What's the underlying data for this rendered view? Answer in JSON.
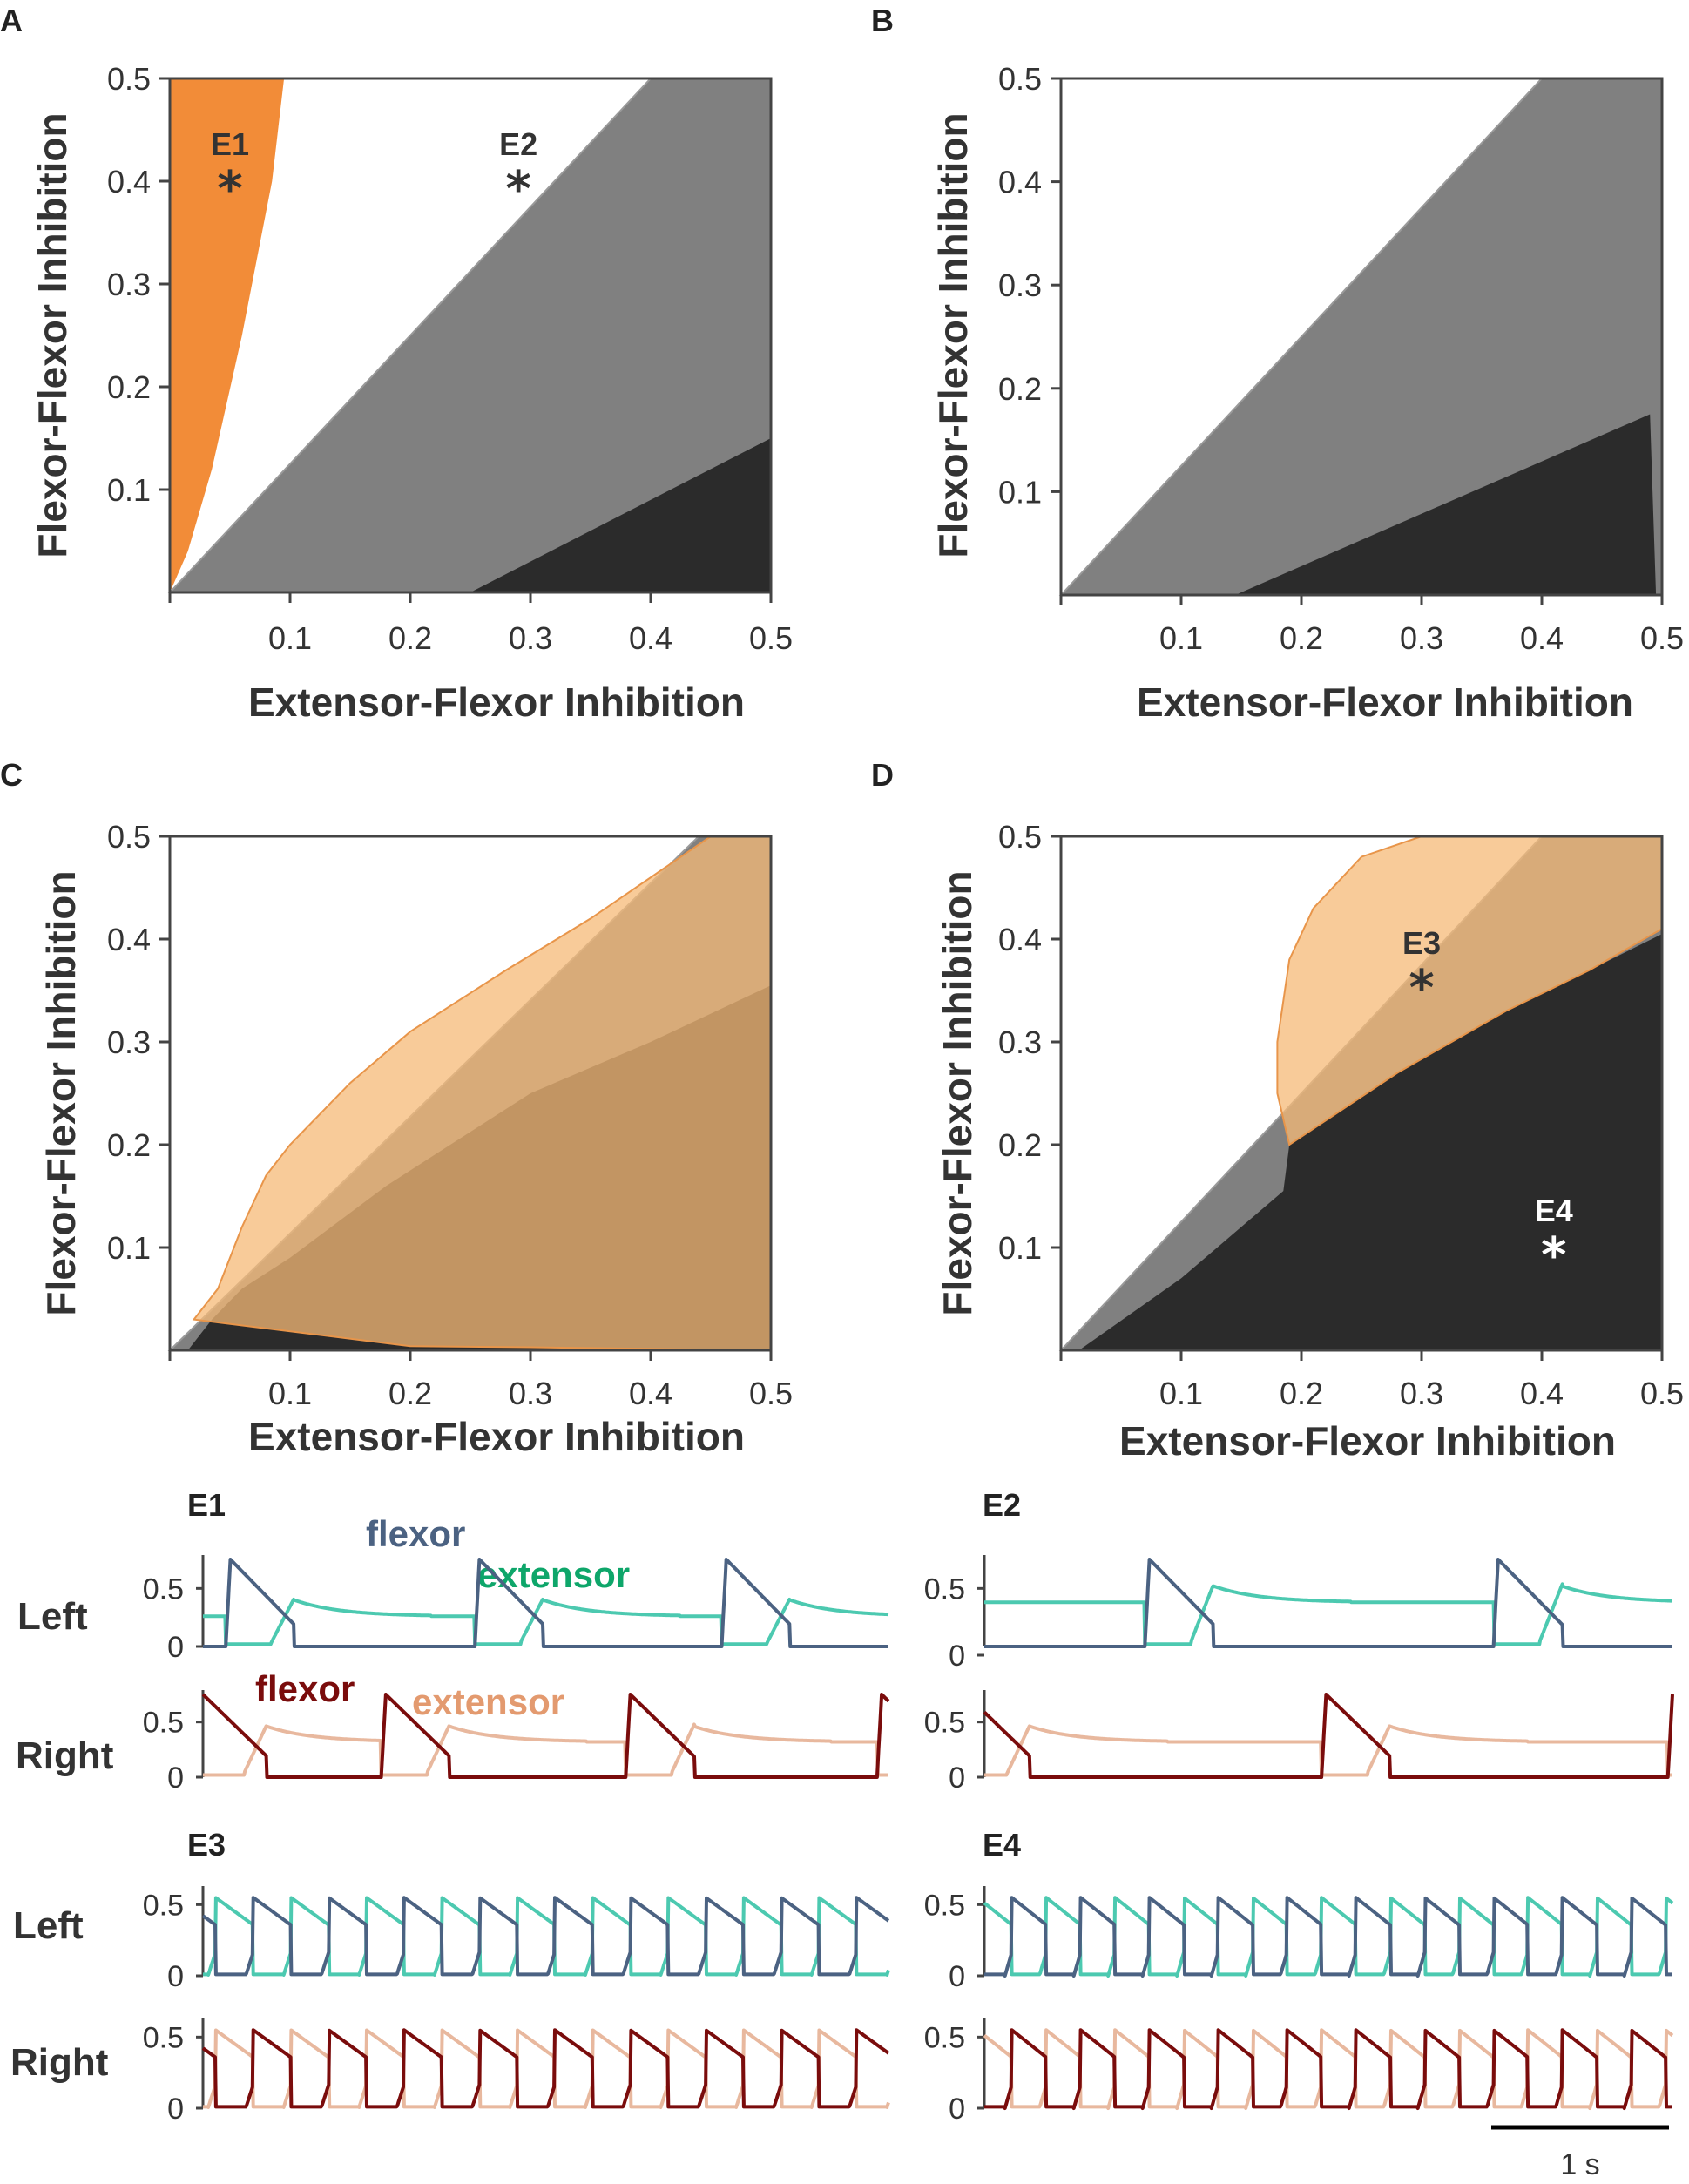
{
  "colors": {
    "orange": "#F28C38",
    "light_orange": "#F5B977",
    "orange_edge": "#E8954A",
    "gray": "#808080",
    "dark": "#2B2B2B",
    "blue": "#4B6282",
    "teal": "#4CC9B0",
    "dark_red": "#7A0C0C",
    "pink": "#E8B89E",
    "green_label": "#0EA66A",
    "flexor_left_label": "#4B6282",
    "flexor_right_label": "#7A0C0C",
    "extensor_right_label": "#E39A6F"
  },
  "chart_data": [
    {
      "id": "A",
      "type": "area",
      "panel_label": "A",
      "xlabel": "Extensor-Flexor Inhibition",
      "ylabel": "Flexor-Flexor Inhibition",
      "xlim": [
        0,
        0.5
      ],
      "ylim": [
        0,
        0.5
      ],
      "x_ticks": [
        "0.1",
        "0.2",
        "0.3",
        "0.4",
        "0.5"
      ],
      "y_ticks": [
        "0.1",
        "0.2",
        "0.3",
        "0.4",
        "0.5"
      ],
      "regions": [
        {
          "name": "gray",
          "color": "gray",
          "points": [
            [
              0,
              0
            ],
            [
              0.4,
              0.5
            ],
            [
              0.5,
              0.5
            ],
            [
              0.5,
              0
            ]
          ]
        },
        {
          "name": "orange",
          "color": "orange",
          "points": [
            [
              0,
              0
            ],
            [
              0,
              0.5
            ],
            [
              0.095,
              0.5
            ],
            [
              0.085,
              0.4
            ],
            [
              0.06,
              0.25
            ],
            [
              0.035,
              0.12
            ],
            [
              0.015,
              0.04
            ]
          ]
        },
        {
          "name": "black",
          "color": "dark",
          "points": [
            [
              0.25,
              0
            ],
            [
              0.5,
              0.15
            ],
            [
              0.5,
              0
            ]
          ]
        }
      ],
      "markers": [
        {
          "label": "E1",
          "x": 0.05,
          "y": 0.4,
          "color": "#333333"
        },
        {
          "label": "E2",
          "x": 0.29,
          "y": 0.4,
          "color": "#333333"
        }
      ]
    },
    {
      "id": "B",
      "type": "area",
      "panel_label": "B",
      "xlabel": "Extensor-Flexor Inhibition",
      "ylabel": "Flexor-Flexor Inhibition",
      "xlim": [
        0,
        0.5
      ],
      "ylim": [
        0,
        0.5
      ],
      "x_ticks": [
        "0.1",
        "0.2",
        "0.3",
        "0.4",
        "0.5"
      ],
      "y_ticks": [
        "0.1",
        "0.2",
        "0.3",
        "0.4",
        "0.5"
      ],
      "regions": [
        {
          "name": "gray",
          "color": "gray",
          "points": [
            [
              0,
              0
            ],
            [
              0.4,
              0.5
            ],
            [
              0.5,
              0.5
            ],
            [
              0.5,
              0
            ]
          ]
        },
        {
          "name": "black",
          "color": "dark",
          "points": [
            [
              0.145,
              0
            ],
            [
              0.49,
              0.175
            ],
            [
              0.495,
              0
            ]
          ]
        }
      ],
      "markers": []
    },
    {
      "id": "C",
      "type": "area",
      "panel_label": "C",
      "xlabel": "Extensor-Flexor Inhibition",
      "ylabel": "Flexor-Flexor Inhibition",
      "xlim": [
        0,
        0.5
      ],
      "ylim": [
        0,
        0.5
      ],
      "x_ticks": [
        "0.1",
        "0.2",
        "0.3",
        "0.4",
        "0.5"
      ],
      "y_ticks": [
        "0.1",
        "0.2",
        "0.3",
        "0.4",
        "0.5"
      ],
      "regions": [
        {
          "name": "gray",
          "color": "gray",
          "points": [
            [
              0,
              0
            ],
            [
              0.44,
              0.5
            ],
            [
              0.5,
              0.5
            ],
            [
              0.5,
              0
            ]
          ]
        },
        {
          "name": "black",
          "color": "dark",
          "points": [
            [
              0.015,
              0
            ],
            [
              0.035,
              0.03
            ],
            [
              0.06,
              0.06
            ],
            [
              0.1,
              0.09
            ],
            [
              0.18,
              0.16
            ],
            [
              0.3,
              0.25
            ],
            [
              0.4,
              0.3
            ],
            [
              0.5,
              0.355
            ],
            [
              0.5,
              0
            ]
          ]
        },
        {
          "name": "orange-overlay",
          "color": "light_orange",
          "opacity": 0.75,
          "points": [
            [
              0.02,
              0.03
            ],
            [
              0.04,
              0.06
            ],
            [
              0.06,
              0.12
            ],
            [
              0.08,
              0.17
            ],
            [
              0.1,
              0.2
            ],
            [
              0.15,
              0.26
            ],
            [
              0.2,
              0.31
            ],
            [
              0.28,
              0.37
            ],
            [
              0.35,
              0.42
            ],
            [
              0.45,
              0.5
            ],
            [
              0.5,
              0.5
            ],
            [
              0.5,
              0
            ],
            [
              0.3,
              0.003
            ],
            [
              0.2,
              0.004
            ]
          ]
        }
      ],
      "markers": []
    },
    {
      "id": "D",
      "type": "area",
      "panel_label": "D",
      "xlabel": "Extensor-Flexor Inhibition",
      "ylabel": "Flexor-Flexor Inhibition",
      "xlim": [
        0,
        0.5
      ],
      "ylim": [
        0,
        0.5
      ],
      "x_ticks": [
        "0.1",
        "0.2",
        "0.3",
        "0.4",
        "0.5"
      ],
      "y_ticks": [
        "0.1",
        "0.2",
        "0.3",
        "0.4",
        "0.5"
      ],
      "regions": [
        {
          "name": "gray",
          "color": "gray",
          "points": [
            [
              0,
              0
            ],
            [
              0.4,
              0.5
            ],
            [
              0.5,
              0.5
            ],
            [
              0.5,
              0
            ]
          ]
        },
        {
          "name": "black",
          "color": "dark",
          "points": [
            [
              0.015,
              0
            ],
            [
              0.1,
              0.07
            ],
            [
              0.16,
              0.13
            ],
            [
              0.185,
              0.155
            ],
            [
              0.19,
              0.2
            ],
            [
              0.28,
              0.27
            ],
            [
              0.37,
              0.33
            ],
            [
              0.44,
              0.37
            ],
            [
              0.5,
              0.405
            ],
            [
              0.5,
              0
            ]
          ]
        },
        {
          "name": "orange-overlay",
          "color": "light_orange",
          "opacity": 0.75,
          "points": [
            [
              0.19,
              0.2
            ],
            [
              0.18,
              0.25
            ],
            [
              0.18,
              0.3
            ],
            [
              0.19,
              0.38
            ],
            [
              0.21,
              0.43
            ],
            [
              0.25,
              0.48
            ],
            [
              0.3,
              0.5
            ],
            [
              0.5,
              0.5
            ],
            [
              0.5,
              0.41
            ],
            [
              0.44,
              0.37
            ],
            [
              0.37,
              0.33
            ],
            [
              0.28,
              0.27
            ],
            [
              0.19,
              0.2
            ]
          ]
        }
      ],
      "markers": [
        {
          "label": "E3",
          "x": 0.3,
          "y": 0.36,
          "color": "#333333"
        },
        {
          "label": "E4",
          "x": 0.41,
          "y": 0.1,
          "color": "#ffffff"
        }
      ]
    },
    {
      "id": "E1",
      "type": "line",
      "title": "E1",
      "duration_s": 3.0,
      "rows": [
        {
          "side": "Left",
          "y_ticks": [
            "0.5",
            "0"
          ],
          "ymax": 0.75,
          "series_labels": [
            {
              "text": "flexor",
              "color": "flexor_left_label"
            },
            {
              "text": "extensor",
              "color": "green_label"
            }
          ],
          "flexor_color": "blue",
          "extensor_color": "teal",
          "bursts": [
            0.1,
            1.19,
            2.27
          ],
          "burst_len": 0.3,
          "peak": 0.75,
          "baseline": 0.26
        },
        {
          "side": "Right",
          "y_ticks": [
            "0.5",
            "0"
          ],
          "ymax": 0.75,
          "series_labels": [
            {
              "text": "flexor",
              "color": "flexor_right_label"
            },
            {
              "text": "extensor",
              "color": "extensor_right_label"
            }
          ],
          "flexor_color": "dark_red",
          "extensor_color": "pink",
          "bursts": [
            -0.02,
            0.78,
            1.85,
            2.95
          ],
          "burst_len": 0.3,
          "peak": 0.75,
          "baseline": 0.32
        }
      ]
    },
    {
      "id": "E2",
      "type": "line",
      "title": "E2",
      "duration_s": 3.0,
      "rows": [
        {
          "side": "",
          "y_ticks": [
            "0.5",
            ""
          ],
          "ymax": 0.75,
          "flexor_color": "blue",
          "extensor_color": "teal",
          "bursts": [
            0.7,
            2.22
          ],
          "burst_len": 0.3,
          "peak": 0.75,
          "baseline": 0.38
        },
        {
          "side": "",
          "y_ticks": [
            "0",
            "0.5",
            "0"
          ],
          "ymax": 0.75,
          "flexor_color": "dark_red",
          "extensor_color": "pink",
          "bursts": [
            -0.1,
            1.47,
            2.98
          ],
          "burst_len": 0.3,
          "peak": 0.75,
          "baseline": 0.32
        }
      ]
    },
    {
      "id": "E3",
      "type": "line",
      "title": "E3",
      "duration_s": 3.0,
      "rows": [
        {
          "side": "Left",
          "y_ticks": [
            "0.5",
            "0"
          ],
          "ymax": 0.6,
          "flexor_color": "blue",
          "extensor_color": "teal",
          "period": 0.33,
          "offset": 0.22,
          "peak": 0.55
        },
        {
          "side": "Right",
          "y_ticks": [
            "0.5",
            "0"
          ],
          "ymax": 0.6,
          "flexor_color": "dark_red",
          "extensor_color": "pink",
          "period": 0.33,
          "offset": 0.22,
          "peak": 0.55
        }
      ]
    },
    {
      "id": "E4",
      "type": "line",
      "title": "E4",
      "duration_s": 3.0,
      "rows": [
        {
          "side": "",
          "y_ticks": [
            "0.5",
            "0"
          ],
          "ymax": 0.6,
          "flexor_color": "blue",
          "extensor_color": "teal",
          "period": 0.3,
          "offset": 0.12,
          "peak": 0.55
        },
        {
          "side": "",
          "y_ticks": [
            "0.5",
            "0"
          ],
          "ymax": 0.6,
          "flexor_color": "dark_red",
          "extensor_color": "pink",
          "period": 0.3,
          "offset": 0.12,
          "peak": 0.55
        }
      ]
    }
  ],
  "scale_bar": {
    "label": "1 s"
  }
}
